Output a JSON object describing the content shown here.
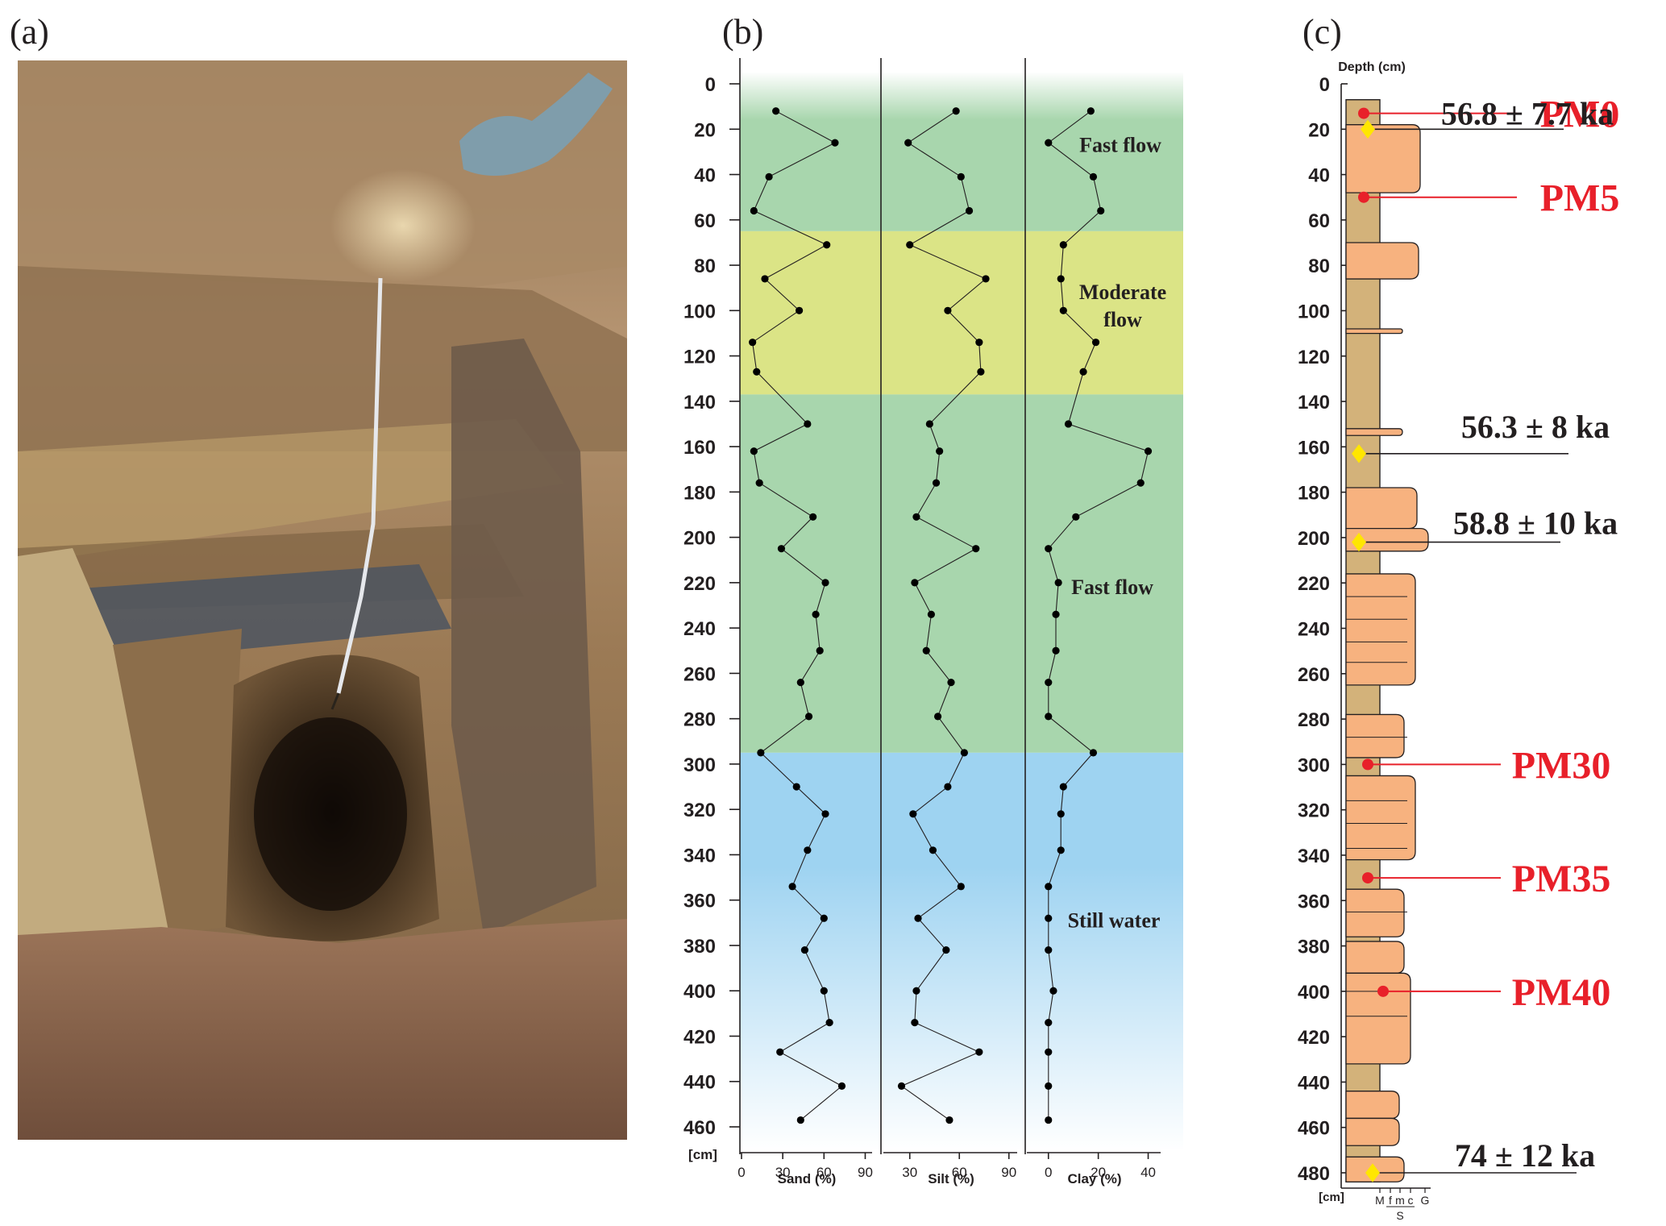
{
  "panels": {
    "a": "(a)",
    "b": "(b)",
    "c": "(c)"
  },
  "chart_data": [
    {
      "type": "line",
      "panel": "b",
      "orientation": "depth-profile",
      "depth_unit": "[cm]",
      "depth_ticks": [
        0,
        20,
        40,
        60,
        80,
        100,
        120,
        140,
        160,
        180,
        200,
        220,
        240,
        260,
        280,
        300,
        320,
        340,
        360,
        380,
        400,
        420,
        440,
        460
      ],
      "depths": [
        12,
        26,
        41,
        56,
        71,
        86,
        100,
        114,
        127,
        150,
        162,
        176,
        191,
        205,
        220,
        234,
        250,
        264,
        279,
        295,
        310,
        322,
        338,
        354,
        368,
        382,
        400,
        414,
        427,
        442,
        457
      ],
      "series": [
        {
          "name": "Sand (%)",
          "xticks": [
            0,
            30,
            60,
            90
          ],
          "xlim": [
            0,
            95
          ],
          "values": [
            25,
            68,
            20,
            9,
            62,
            17,
            42,
            8,
            11,
            48,
            9,
            13,
            52,
            29,
            61,
            54,
            57,
            43,
            49,
            14,
            40,
            61,
            48,
            37,
            60,
            46,
            60,
            64,
            28,
            73,
            43
          ]
        },
        {
          "name": "Silt (%)",
          "xticks": [
            30,
            60,
            90
          ],
          "xlim": [
            15,
            95
          ],
          "values": [
            58,
            29,
            61,
            66,
            30,
            76,
            53,
            72,
            73,
            42,
            48,
            46,
            34,
            70,
            33,
            43,
            40,
            55,
            47,
            63,
            53,
            32,
            44,
            61,
            35,
            52,
            34,
            33,
            72,
            25,
            54
          ]
        },
        {
          "name": "Clay (%)",
          "xticks": [
            0,
            20,
            40
          ],
          "xlim": [
            -8,
            45
          ],
          "values": [
            17,
            0,
            18,
            21,
            6,
            5,
            6,
            19,
            14,
            8,
            40,
            37,
            11,
            0,
            4,
            3,
            3,
            0,
            0,
            18,
            6,
            5,
            5,
            0,
            0,
            0,
            2,
            0,
            0,
            0,
            0
          ]
        }
      ],
      "zones": [
        {
          "label": "Fast flow",
          "from": -5,
          "to": 65,
          "color": "#a8d6ad"
        },
        {
          "label": "Moderate\nflow",
          "from": 65,
          "to": 137,
          "color": "#dbe486"
        },
        {
          "label": "Fast flow",
          "from": 137,
          "to": 295,
          "color": "#a8d6ad"
        },
        {
          "label": "Still water",
          "from": 295,
          "to": 470,
          "color": "#9ed3f1"
        }
      ],
      "zone_labels": [
        "Fast flow",
        "Moderate",
        "flow",
        "Fast flow",
        "Still water"
      ]
    },
    {
      "type": "table",
      "panel": "c",
      "title": "Depth (cm)",
      "depth_unit": "[cm]",
      "depth_ticks": [
        0,
        20,
        40,
        60,
        80,
        100,
        120,
        140,
        160,
        180,
        200,
        220,
        240,
        260,
        280,
        300,
        320,
        340,
        360,
        380,
        400,
        420,
        440,
        460,
        480
      ],
      "samples": [
        {
          "name": "PM0",
          "depth": 13
        },
        {
          "name": "PM5",
          "depth": 50
        },
        {
          "name": "PM30",
          "depth": 300
        },
        {
          "name": "PM35",
          "depth": 350
        },
        {
          "name": "PM40",
          "depth": 400
        }
      ],
      "ages": [
        {
          "label": "56.8 ± 7.7 ka",
          "depth": 20
        },
        {
          "label": "56.3 ± 8 ka",
          "depth": 163
        },
        {
          "label": "58.8 ± 10 ka",
          "depth": 202
        },
        {
          "label": "74 ± 12 ka",
          "depth": 480
        }
      ],
      "grain_scale": {
        "labels": [
          "M",
          "f",
          "m",
          "c",
          "G"
        ],
        "sand_label": "S"
      },
      "colors": {
        "sand": "#f7b27f",
        "mud": "#d3b27a",
        "sample": "#e8202a",
        "age": "#ffe600"
      }
    }
  ]
}
